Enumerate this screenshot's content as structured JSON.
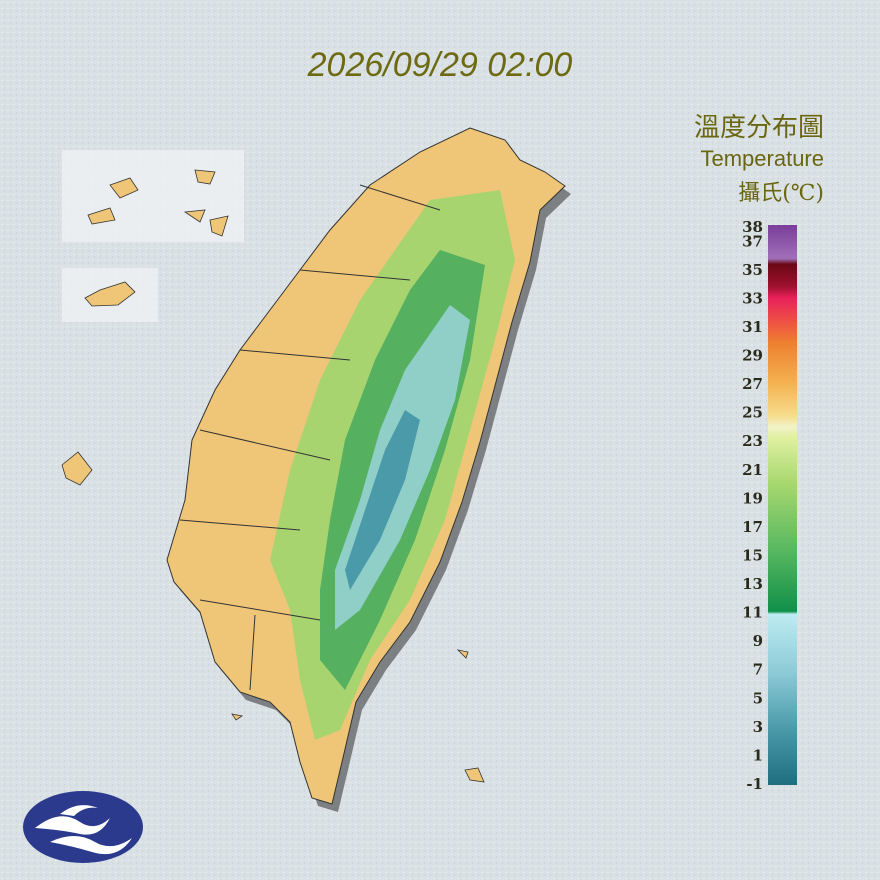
{
  "title": "2026/09/29 02:00",
  "legend": {
    "title_zh": "溫度分布圖",
    "title_en": "Temperature",
    "unit": "攝氏(℃)",
    "range": [
      -1,
      38
    ],
    "ticks": [
      38,
      37,
      35,
      33,
      31,
      29,
      27,
      25,
      23,
      21,
      19,
      17,
      15,
      13,
      11,
      9,
      7,
      5,
      3,
      1,
      -1
    ]
  }
}
